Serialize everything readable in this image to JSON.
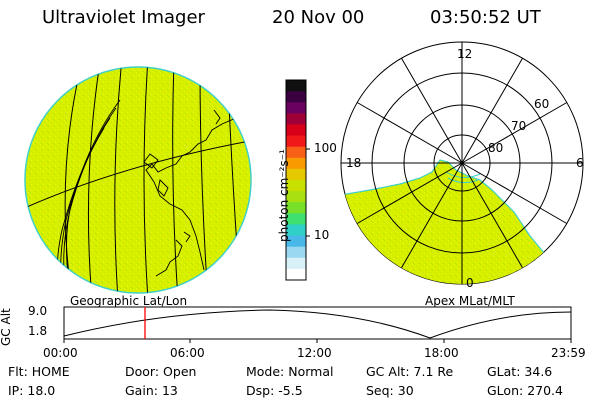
{
  "header": {
    "instrument": "Ultraviolet Imager",
    "date": "20 Nov 00",
    "time": "03:50:52 UT"
  },
  "colorbar": {
    "unit_label": "photon cm⁻²s⁻¹",
    "ticks": [
      "100",
      "10"
    ],
    "colors": [
      "#101010",
      "#3a003f",
      "#6a0060",
      "#a00038",
      "#d80018",
      "#f01818",
      "#f86018",
      "#f89a00",
      "#e6c800",
      "#c8e000",
      "#a8e010",
      "#78e028",
      "#40e070",
      "#30d0c8",
      "#48b8e8",
      "#9ad8f0",
      "#d8f0f8",
      "#ffffff"
    ]
  },
  "left_map": {
    "label": "Geographic Lat/Lon",
    "fill_color": "#d8f000"
  },
  "polar_plot": {
    "label": "Apex MLat/MLT",
    "mlt_labels": [
      "12",
      "18",
      "6",
      "0"
    ],
    "lat_labels": [
      "60",
      "70",
      "80"
    ]
  },
  "altitude_panel": {
    "ylabel": "GC Alt",
    "yticks": [
      "9.0",
      "1.8"
    ],
    "time_ticks": [
      "00:00",
      "06:00",
      "12:00",
      "18:00",
      "23:59"
    ],
    "current_time_marker": "03:50",
    "marker_color": "#ff0000"
  },
  "info_rows": [
    [
      {
        "key": "Flt:",
        "value": "HOME"
      },
      {
        "key": "Door:",
        "value": "Open"
      },
      {
        "key": "Mode:",
        "value": "Normal"
      },
      {
        "key": "GC Alt:",
        "value": "7.1 Re"
      },
      {
        "key": "GLat:",
        "value": "34.6"
      }
    ],
    [
      {
        "key": "IP:",
        "value": "18.0"
      },
      {
        "key": "Gain:",
        "value": "13"
      },
      {
        "key": "Dsp:",
        "value": "-5.5"
      },
      {
        "key": "Seq:",
        "value": "30"
      },
      {
        "key": "GLon:",
        "value": "270.4"
      }
    ]
  ]
}
